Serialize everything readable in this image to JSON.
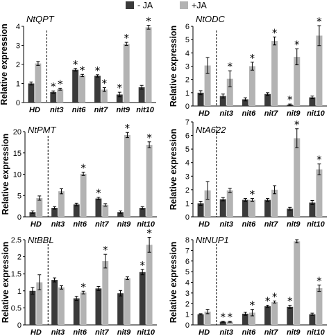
{
  "legend": [
    {
      "label": "- JA",
      "color": "#3a3a3a"
    },
    {
      "label": "+JA",
      "color": "#b3b3b3"
    }
  ],
  "colors": {
    "minus_ja": "#3a3a3a",
    "plus_ja": "#b3b3b3"
  },
  "chart_data": [
    {
      "type": "bar",
      "title": "NtQPT",
      "ylabel": "Relative expression",
      "categories": [
        "HD",
        "nit3",
        "nit6",
        "nit7",
        "nit9",
        "nit10"
      ],
      "ylim": [
        0,
        4
      ],
      "yticks": [
        "0",
        "1",
        "2",
        "3",
        "4"
      ],
      "series": [
        {
          "name": "- JA",
          "values": [
            1.0,
            0.55,
            1.72,
            1.4,
            0.42,
            0.8
          ],
          "errors": [
            0.08,
            0.06,
            0.07,
            0.06,
            0.12,
            0.1
          ],
          "stars": [
            false,
            true,
            true,
            true,
            true,
            false
          ]
        },
        {
          "name": "+JA",
          "values": [
            2.05,
            0.7,
            1.42,
            0.68,
            3.08,
            3.95
          ],
          "errors": [
            0.1,
            0.05,
            0.06,
            0.1,
            0.08,
            0.1
          ],
          "stars": [
            false,
            true,
            true,
            true,
            true,
            true
          ]
        }
      ]
    },
    {
      "type": "bar",
      "title": "NtODC",
      "ylabel": "Relative expression",
      "categories": [
        "HD",
        "nit3",
        "nit6",
        "nit7",
        "nit9",
        "nit10"
      ],
      "ylim": [
        0,
        6
      ],
      "yticks": [
        "0",
        "1",
        "2",
        "3",
        "4",
        "5",
        "6"
      ],
      "series": [
        {
          "name": "- JA",
          "values": [
            1.0,
            0.75,
            0.5,
            0.9,
            0.1,
            0.65
          ],
          "errors": [
            0.15,
            0.15,
            0.12,
            0.1,
            0.05,
            0.1
          ],
          "stars": [
            false,
            false,
            false,
            false,
            true,
            false
          ]
        },
        {
          "name": "+JA",
          "values": [
            3.05,
            2.05,
            3.0,
            4.9,
            3.7,
            5.3
          ],
          "errors": [
            0.6,
            0.6,
            0.3,
            0.3,
            0.6,
            0.75
          ],
          "stars": [
            false,
            true,
            true,
            true,
            true,
            true
          ]
        }
      ]
    },
    {
      "type": "bar",
      "title": "NtPMT",
      "ylabel": "Relative expression",
      "categories": [
        "HD",
        "nit3",
        "nit6",
        "nit7",
        "nit9",
        "nit10"
      ],
      "ylim": [
        0,
        20
      ],
      "yticks": [
        "0",
        "5",
        "10",
        "15",
        "20"
      ],
      "series": [
        {
          "name": "- JA",
          "values": [
            1.1,
            2.1,
            2.9,
            4.3,
            1.1,
            2.1
          ],
          "errors": [
            0.3,
            0.3,
            0.3,
            0.3,
            0.3,
            0.3
          ],
          "stars": [
            false,
            false,
            false,
            true,
            false,
            false
          ]
        },
        {
          "name": "+JA",
          "values": [
            4.4,
            6.0,
            10.1,
            2.8,
            19.2,
            16.9
          ],
          "errors": [
            0.5,
            0.6,
            0.4,
            0.3,
            0.6,
            0.7
          ],
          "stars": [
            false,
            false,
            true,
            false,
            true,
            true
          ]
        }
      ]
    },
    {
      "type": "bar",
      "title": "NtA622",
      "ylabel": "Relative expression",
      "categories": [
        "HD",
        "nit3",
        "nit6",
        "nit7",
        "nit9",
        "nit10"
      ],
      "ylim": [
        0,
        7
      ],
      "yticks": [
        "0",
        "1",
        "2",
        "3",
        "4",
        "5",
        "6",
        "7"
      ],
      "series": [
        {
          "name": "- JA",
          "values": [
            1.0,
            1.3,
            1.25,
            1.25,
            0.6,
            1.05
          ],
          "errors": [
            0.15,
            0.12,
            0.1,
            0.1,
            0.1,
            0.15
          ],
          "stars": [
            false,
            false,
            false,
            false,
            false,
            false
          ]
        },
        {
          "name": "+JA",
          "values": [
            1.95,
            1.95,
            1.25,
            2.0,
            5.8,
            3.5
          ],
          "errors": [
            0.65,
            0.15,
            0.1,
            0.3,
            0.7,
            0.4
          ],
          "stars": [
            false,
            false,
            true,
            false,
            true,
            true
          ]
        }
      ]
    },
    {
      "type": "bar",
      "title": "NtBBL",
      "ylabel": "Relative expression",
      "categories": [
        "HD",
        "nit3",
        "nit6",
        "nit7",
        "nit9",
        "nit10"
      ],
      "ylim": [
        0,
        2.5
      ],
      "yticks": [
        "0",
        "0.5",
        "1",
        "1.5",
        "2",
        "2.5"
      ],
      "series": [
        {
          "name": "- JA",
          "values": [
            1.0,
            1.32,
            0.78,
            1.07,
            0.93,
            1.55
          ],
          "errors": [
            0.1,
            0.06,
            0.06,
            0.06,
            0.08,
            0.08
          ],
          "stars": [
            false,
            false,
            false,
            false,
            false,
            true
          ]
        },
        {
          "name": "+JA",
          "values": [
            1.25,
            1.1,
            0.95,
            1.87,
            1.37,
            2.35
          ],
          "errors": [
            0.22,
            0.05,
            0.04,
            0.2,
            0.04,
            0.22
          ],
          "stars": [
            false,
            false,
            true,
            true,
            false,
            true
          ]
        }
      ]
    },
    {
      "type": "bar",
      "title": "NtNUP1",
      "ylabel": "Relative expression",
      "categories": [
        "HD",
        "nit3",
        "nit6",
        "nit7",
        "nit9",
        "nit10"
      ],
      "ylim": [
        0,
        8
      ],
      "yticks": [
        "0",
        "1",
        "2",
        "3",
        "4",
        "5",
        "6",
        "7",
        "8"
      ],
      "series": [
        {
          "name": "- JA",
          "values": [
            1.0,
            0.3,
            1.05,
            1.75,
            1.7,
            1.0
          ],
          "errors": [
            0.05,
            0.05,
            0.15,
            0.1,
            0.15,
            0.1
          ],
          "stars": [
            false,
            true,
            false,
            true,
            true,
            false
          ]
        },
        {
          "name": "+JA",
          "values": [
            1.25,
            0.3,
            1.15,
            2.15,
            7.85,
            3.45
          ],
          "errors": [
            0.2,
            0.05,
            0.3,
            0.1,
            0.15,
            0.3
          ],
          "stars": [
            false,
            true,
            true,
            true,
            false,
            true
          ]
        }
      ]
    }
  ]
}
